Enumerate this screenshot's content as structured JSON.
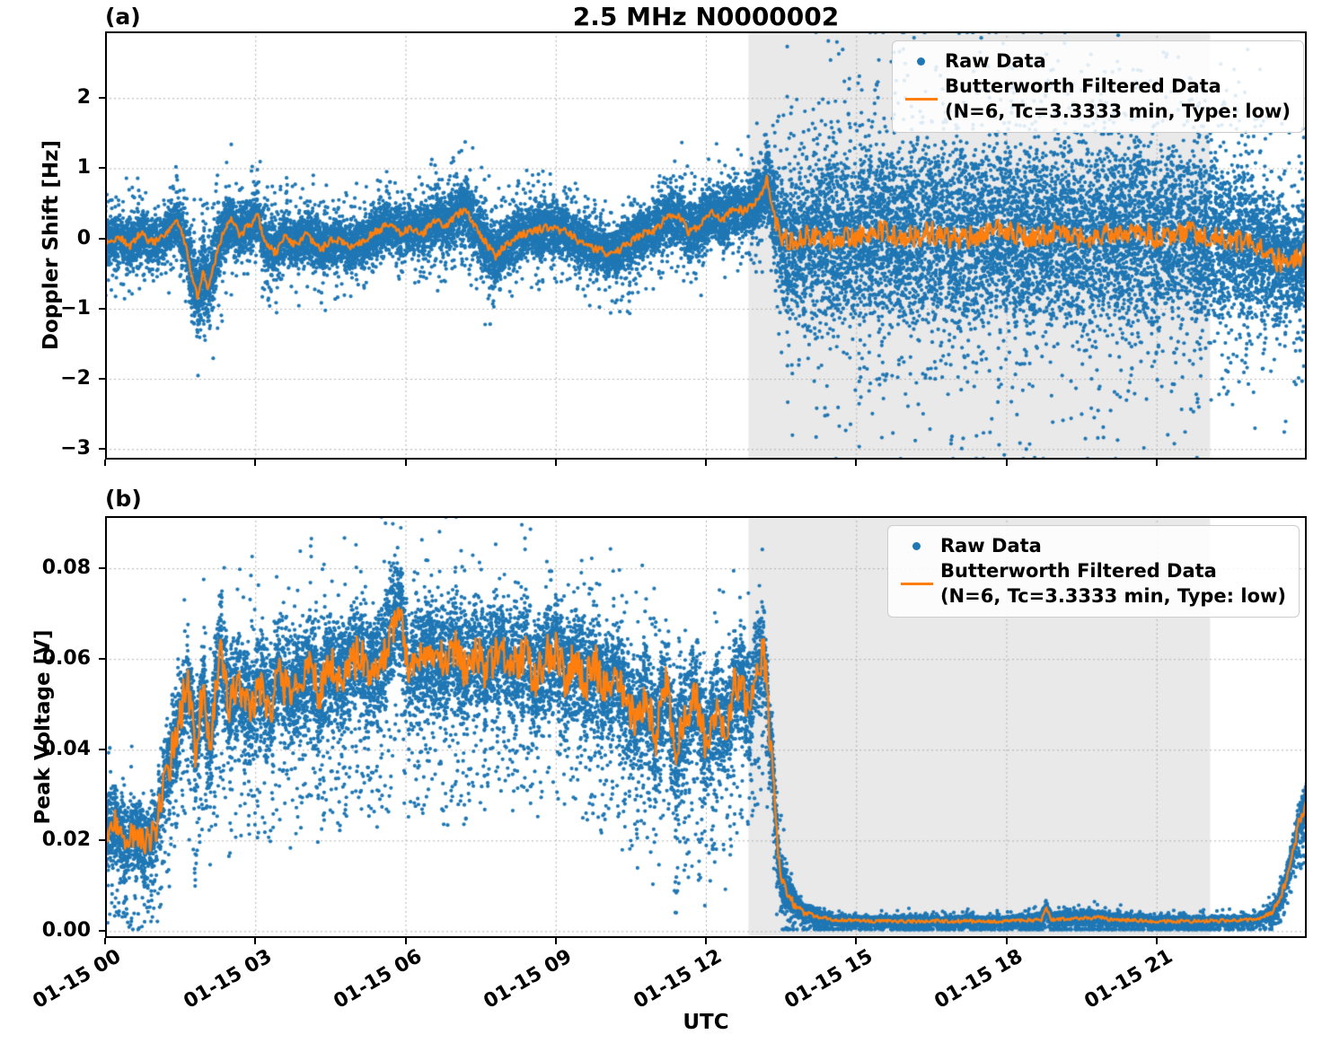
{
  "x_axis": {
    "label": "UTC",
    "range_hours": [
      0,
      24
    ],
    "tick_hours": [
      0,
      3,
      6,
      9,
      12,
      15,
      18,
      21
    ],
    "tick_labels": [
      "01-15 00",
      "01-15 03",
      "01-15 06",
      "01-15 09",
      "01-15 12",
      "01-15 15",
      "01-15 18",
      "01-15 21"
    ]
  },
  "legend": {
    "raw": "Raw Data",
    "filtered_line1": "Butterworth Filtered Data",
    "filtered_line2": "(N=6, Tc=3.3333 min, Type: low)"
  },
  "colors": {
    "raw": "#1f77b4",
    "filtered": "#ff7f0e",
    "shade": "#e9e9e9",
    "grid": "#b0b0b0",
    "text": "#000000"
  },
  "chart_data": [
    {
      "panel": "a",
      "tag": "(a)",
      "type": "scatter",
      "title": "2.5 MHz N0000002",
      "ylabel": "Doppler Shift [Hz]",
      "ylim": [
        -3.15,
        2.95
      ],
      "yticks": [
        2,
        1,
        0,
        -1,
        -2,
        -3
      ],
      "ytick_labels": [
        "2",
        "1",
        "0",
        "−1",
        "−2",
        "−3"
      ],
      "grid": true,
      "legend_position": "upper right",
      "shaded_region_hours": [
        12.85,
        22.07
      ],
      "series": [
        {
          "name": "Raw Data",
          "kind": "scatter",
          "color": "#1f77b4",
          "center": "filtered",
          "spread_track": [
            [
              0,
              0.4
            ],
            [
              1.5,
              0.38
            ],
            [
              1.7,
              0.55
            ],
            [
              2.1,
              0.65
            ],
            [
              2.4,
              0.5
            ],
            [
              2.7,
              0.42
            ],
            [
              3.1,
              0.5
            ],
            [
              3.5,
              0.4
            ],
            [
              5,
              0.38
            ],
            [
              6.5,
              0.42
            ],
            [
              7.2,
              0.55
            ],
            [
              7.9,
              0.5
            ],
            [
              8.5,
              0.4
            ],
            [
              10,
              0.38
            ],
            [
              11,
              0.42
            ],
            [
              11.5,
              0.5
            ],
            [
              12,
              0.45
            ],
            [
              12.8,
              0.42
            ],
            [
              13.1,
              0.5
            ],
            [
              13.35,
              0.8
            ],
            [
              13.6,
              1.2
            ],
            [
              14,
              1.35
            ],
            [
              15,
              1.45
            ],
            [
              16,
              1.5
            ],
            [
              18,
              1.5
            ],
            [
              20,
              1.5
            ],
            [
              21.5,
              1.45
            ],
            [
              22.5,
              1.3
            ],
            [
              23.2,
              1.1
            ],
            [
              23.7,
              0.95
            ],
            [
              24,
              0.9
            ]
          ],
          "n_points": 22000,
          "outlier_fraction": 0.07,
          "downspike_fraction": 0.0
        },
        {
          "name": "Butterworth Filtered Data (N=6, Tc=3.3333 min, Type: low)",
          "kind": "line",
          "color": "#ff7f0e",
          "points": [
            [
              0,
              -0.05
            ],
            [
              0.3,
              0.02
            ],
            [
              0.5,
              -0.12
            ],
            [
              0.7,
              0.08
            ],
            [
              0.9,
              -0.05
            ],
            [
              1.1,
              -0.02
            ],
            [
              1.3,
              0.12
            ],
            [
              1.45,
              0.25
            ],
            [
              1.6,
              -0.1
            ],
            [
              1.75,
              -0.55
            ],
            [
              1.85,
              -0.85
            ],
            [
              1.95,
              -0.45
            ],
            [
              2.05,
              -0.72
            ],
            [
              2.2,
              -0.3
            ],
            [
              2.35,
              0.1
            ],
            [
              2.5,
              0.27
            ],
            [
              2.7,
              0.05
            ],
            [
              2.9,
              0.2
            ],
            [
              3.05,
              0.3
            ],
            [
              3.2,
              -0.05
            ],
            [
              3.4,
              -0.22
            ],
            [
              3.6,
              0.05
            ],
            [
              3.8,
              -0.1
            ],
            [
              4,
              0.05
            ],
            [
              4.3,
              -0.15
            ],
            [
              4.6,
              0
            ],
            [
              4.9,
              -0.12
            ],
            [
              5.1,
              -0.05
            ],
            [
              5.4,
              0.1
            ],
            [
              5.7,
              0.2
            ],
            [
              5.9,
              0.08
            ],
            [
              6.1,
              0.15
            ],
            [
              6.35,
              0.08
            ],
            [
              6.6,
              0.26
            ],
            [
              6.8,
              0.18
            ],
            [
              7,
              0.3
            ],
            [
              7.2,
              0.45
            ],
            [
              7.35,
              0.2
            ],
            [
              7.55,
              0
            ],
            [
              7.8,
              -0.26
            ],
            [
              8,
              -0.1
            ],
            [
              8.3,
              0.05
            ],
            [
              8.6,
              0.12
            ],
            [
              8.9,
              0.16
            ],
            [
              9.2,
              0.1
            ],
            [
              9.5,
              -0.05
            ],
            [
              9.8,
              -0.15
            ],
            [
              10.1,
              -0.22
            ],
            [
              10.4,
              -0.1
            ],
            [
              10.7,
              0.05
            ],
            [
              11,
              0.12
            ],
            [
              11.2,
              0.3
            ],
            [
              11.45,
              0.35
            ],
            [
              11.65,
              0.1
            ],
            [
              11.9,
              0.2
            ],
            [
              12.1,
              0.4
            ],
            [
              12.3,
              0.25
            ],
            [
              12.55,
              0.45
            ],
            [
              12.75,
              0.38
            ],
            [
              12.95,
              0.5
            ],
            [
              13.1,
              0.62
            ],
            [
              13.22,
              0.85
            ],
            [
              13.35,
              0.35
            ],
            [
              13.5,
              0
            ],
            [
              13.7,
              -0.05
            ],
            [
              14,
              0.05
            ],
            [
              14.5,
              -0.05
            ],
            [
              15,
              0.02
            ],
            [
              15.5,
              0.1
            ],
            [
              16,
              0
            ],
            [
              16.5,
              0.08
            ],
            [
              17,
              -0.02
            ],
            [
              17.5,
              0.06
            ],
            [
              18,
              0.12
            ],
            [
              18.5,
              0
            ],
            [
              19,
              0.08
            ],
            [
              19.5,
              -0.02
            ],
            [
              20,
              0.05
            ],
            [
              20.5,
              0.1
            ],
            [
              21,
              0.02
            ],
            [
              21.5,
              0.1
            ],
            [
              22,
              0.05
            ],
            [
              22.5,
              0
            ],
            [
              23,
              -0.12
            ],
            [
              23.4,
              -0.3
            ],
            [
              23.7,
              -0.38
            ],
            [
              23.9,
              -0.22
            ],
            [
              24,
              -0.12
            ]
          ],
          "jitter_amp": [
            [
              0,
              0.06
            ],
            [
              13.3,
              0.06
            ],
            [
              13.45,
              0.17
            ],
            [
              24,
              0.17
            ]
          ]
        }
      ]
    },
    {
      "panel": "b",
      "tag": "(b)",
      "type": "scatter",
      "title": "",
      "ylabel": "Peak Voltage [V]",
      "ylim": [
        -0.0015,
        0.0915
      ],
      "yticks": [
        0.08,
        0.06,
        0.04,
        0.02,
        0
      ],
      "ytick_labels": [
        "0.08",
        "0.06",
        "0.04",
        "0.02",
        "0.00"
      ],
      "grid": true,
      "legend_position": "upper right",
      "shaded_region_hours": [
        12.85,
        22.07
      ],
      "series": [
        {
          "name": "Raw Data",
          "kind": "scatter",
          "color": "#1f77b4",
          "center": "filtered",
          "spread_track": [
            [
              0,
              0.009
            ],
            [
              1,
              0.009
            ],
            [
              1.3,
              0.011
            ],
            [
              2,
              0.013
            ],
            [
              3,
              0.014
            ],
            [
              5,
              0.015
            ],
            [
              6,
              0.015
            ],
            [
              8,
              0.014
            ],
            [
              10,
              0.014
            ],
            [
              12,
              0.015
            ],
            [
              13.1,
              0.013
            ],
            [
              13.4,
              0.008
            ],
            [
              13.7,
              0.004
            ],
            [
              14,
              0.002
            ],
            [
              14.5,
              0.0011
            ],
            [
              18,
              0.0011
            ],
            [
              18.8,
              0.0018
            ],
            [
              20,
              0.0015
            ],
            [
              23,
              0.0011
            ],
            [
              23.4,
              0.002
            ],
            [
              23.7,
              0.004
            ],
            [
              24,
              0.005
            ]
          ],
          "n_points": 22000,
          "outlier_fraction": 0.03,
          "downspike_fraction": 0.06
        },
        {
          "name": "Butterworth Filtered Data (N=6, Tc=3.3333 min, Type: low)",
          "kind": "line",
          "color": "#ff7f0e",
          "points": [
            [
              0,
              0.021
            ],
            [
              0.2,
              0.024
            ],
            [
              0.4,
              0.019
            ],
            [
              0.6,
              0.022
            ],
            [
              0.8,
              0.018
            ],
            [
              1,
              0.022
            ],
            [
              1.15,
              0.03
            ],
            [
              1.3,
              0.038
            ],
            [
              1.5,
              0.048
            ],
            [
              1.65,
              0.055
            ],
            [
              1.8,
              0.04
            ],
            [
              1.95,
              0.055
            ],
            [
              2.1,
              0.042
            ],
            [
              2.3,
              0.06
            ],
            [
              2.5,
              0.05
            ],
            [
              2.7,
              0.055
            ],
            [
              2.9,
              0.048
            ],
            [
              3.1,
              0.053
            ],
            [
              3.3,
              0.049
            ],
            [
              3.5,
              0.056
            ],
            [
              3.7,
              0.051
            ],
            [
              3.9,
              0.054
            ],
            [
              4.1,
              0.058
            ],
            [
              4.3,
              0.052
            ],
            [
              4.5,
              0.06
            ],
            [
              4.7,
              0.055
            ],
            [
              4.9,
              0.058
            ],
            [
              5.1,
              0.062
            ],
            [
              5.3,
              0.056
            ],
            [
              5.5,
              0.06
            ],
            [
              5.7,
              0.065
            ],
            [
              5.85,
              0.072
            ],
            [
              6,
              0.06
            ],
            [
              6.2,
              0.057
            ],
            [
              6.4,
              0.062
            ],
            [
              6.6,
              0.058
            ],
            [
              6.8,
              0.06
            ],
            [
              7,
              0.063
            ],
            [
              7.2,
              0.058
            ],
            [
              7.4,
              0.062
            ],
            [
              7.6,
              0.057
            ],
            [
              7.8,
              0.06
            ],
            [
              8,
              0.062
            ],
            [
              8.2,
              0.058
            ],
            [
              8.4,
              0.06
            ],
            [
              8.6,
              0.055
            ],
            [
              8.8,
              0.06
            ],
            [
              9,
              0.062
            ],
            [
              9.2,
              0.056
            ],
            [
              9.4,
              0.06
            ],
            [
              9.6,
              0.055
            ],
            [
              9.8,
              0.058
            ],
            [
              10,
              0.054
            ],
            [
              10.2,
              0.058
            ],
            [
              10.4,
              0.05
            ],
            [
              10.6,
              0.045
            ],
            [
              10.8,
              0.052
            ],
            [
              11,
              0.042
            ],
            [
              11.2,
              0.055
            ],
            [
              11.4,
              0.038
            ],
            [
              11.6,
              0.048
            ],
            [
              11.8,
              0.052
            ],
            [
              12,
              0.04
            ],
            [
              12.2,
              0.05
            ],
            [
              12.4,
              0.045
            ],
            [
              12.6,
              0.055
            ],
            [
              12.8,
              0.05
            ],
            [
              13,
              0.058
            ],
            [
              13.15,
              0.062
            ],
            [
              13.3,
              0.04
            ],
            [
              13.45,
              0.015
            ],
            [
              13.6,
              0.009
            ],
            [
              13.8,
              0.005
            ],
            [
              14,
              0.004
            ],
            [
              14.3,
              0.003
            ],
            [
              14.6,
              0.0025
            ],
            [
              15,
              0.0022
            ],
            [
              16,
              0.0022
            ],
            [
              17,
              0.0022
            ],
            [
              18,
              0.0022
            ],
            [
              18.7,
              0.0025
            ],
            [
              18.8,
              0.005
            ],
            [
              18.9,
              0.0025
            ],
            [
              19.9,
              0.003
            ],
            [
              20.05,
              0.0025
            ],
            [
              21,
              0.0022
            ],
            [
              22,
              0.0022
            ],
            [
              23,
              0.0025
            ],
            [
              23.3,
              0.004
            ],
            [
              23.5,
              0.008
            ],
            [
              23.7,
              0.016
            ],
            [
              23.85,
              0.024
            ],
            [
              24,
              0.028
            ]
          ],
          "jitter_amp": [
            [
              0,
              0.0025
            ],
            [
              1.2,
              0.005
            ],
            [
              13.2,
              0.005
            ],
            [
              13.6,
              0.0012
            ],
            [
              14.2,
              0.0004
            ],
            [
              23.2,
              0.0004
            ],
            [
              23.6,
              0.0012
            ],
            [
              24,
              0.0015
            ]
          ]
        }
      ]
    }
  ]
}
